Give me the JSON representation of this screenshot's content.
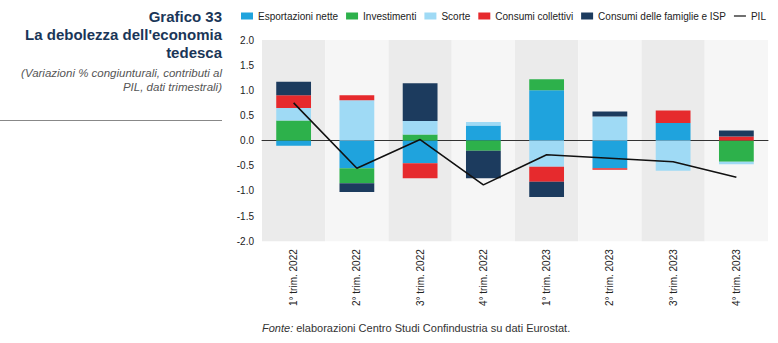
{
  "chart_data": {
    "type": "bar",
    "title": "Grafico 33",
    "subtitle": "La debolezza dell'economia tedesca",
    "note": "(Variazioni % congiunturali, contributi al PIL, dati trimestrali)",
    "source_label": "Fonte:",
    "source": "elaborazioni Centro Studi Confindustria su dati Eurostat.",
    "categories": [
      "1° trim. 2022",
      "2° trim. 2022",
      "3° trim. 2022",
      "4° trim. 2022",
      "1° trim. 2023",
      "2° trim. 2023",
      "3° trim. 2023",
      "4° trim. 2023"
    ],
    "series": [
      {
        "name": "Esportazioni nette",
        "color": "#1fa3dd",
        "values": [
          -0.1,
          -0.55,
          -0.45,
          0.3,
          1.0,
          -0.55,
          0.35,
          0.0
        ]
      },
      {
        "name": "Investimenti",
        "color": "#2db14b",
        "values": [
          0.4,
          -0.3,
          0.12,
          -0.2,
          0.22,
          0.0,
          0.0,
          -0.42
        ]
      },
      {
        "name": "Scorte",
        "color": "#9fdaf5",
        "values": [
          0.25,
          0.8,
          0.27,
          0.07,
          -0.52,
          0.48,
          -0.6,
          -0.05
        ]
      },
      {
        "name": "Consumi collettivi",
        "color": "#e62a2d",
        "values": [
          0.25,
          0.1,
          -0.3,
          0.0,
          -0.3,
          -0.03,
          0.25,
          0.08
        ]
      },
      {
        "name": "Consumi delle famiglie e ISP",
        "color": "#1c3b5e",
        "values": [
          0.27,
          -0.17,
          0.75,
          -0.55,
          -0.3,
          0.1,
          0.0,
          0.12
        ]
      },
      {
        "name": "PIL",
        "color": "#111111",
        "type": "line",
        "marker": "none",
        "values": [
          0.75,
          -0.55,
          0.02,
          -0.88,
          -0.28,
          -0.35,
          -0.42,
          -0.73
        ]
      }
    ],
    "stacked": true,
    "ylim": [
      -2,
      2
    ],
    "yticks": [
      {
        "value": -2,
        "label": "-2.0"
      },
      {
        "value": -1.5,
        "label": "-1.5"
      },
      {
        "value": -1,
        "label": "-1.0"
      },
      {
        "value": -0.5,
        "label": "-0.5"
      },
      {
        "value": 0,
        "label": "0.0"
      },
      {
        "value": 0.5,
        "label": "0.5"
      },
      {
        "value": 1,
        "label": "1.0"
      },
      {
        "value": 1.5,
        "label": "1.5"
      },
      {
        "value": 2,
        "label": "2.0"
      }
    ],
    "grid": false,
    "legend": "top",
    "data_labels": false
  }
}
